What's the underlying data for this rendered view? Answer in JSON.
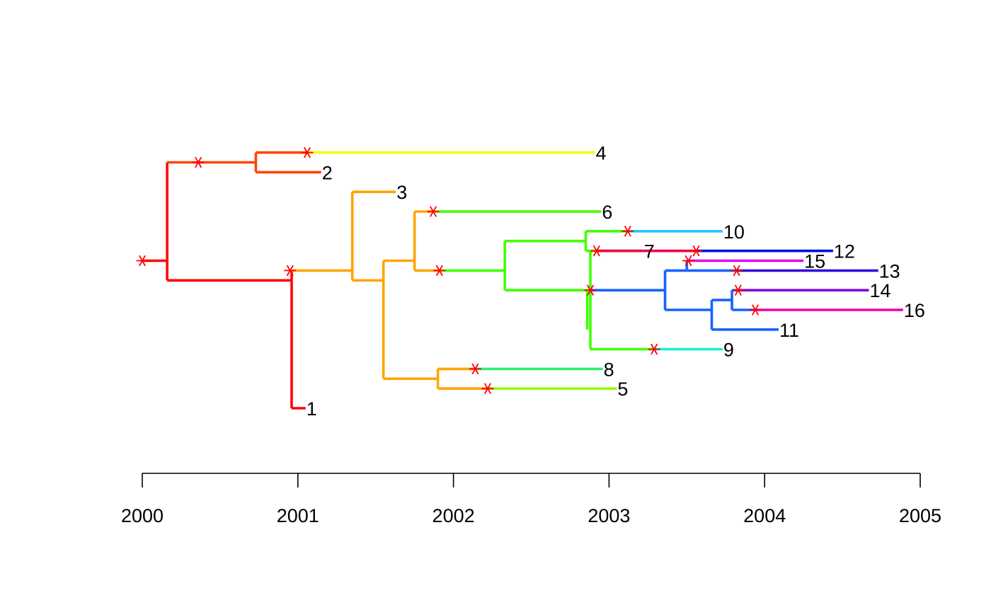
{
  "chart_data": {
    "type": "phylogenetic-tree",
    "x_axis": {
      "ticks": [
        "2000",
        "2001",
        "2002",
        "2003",
        "2004",
        "2005"
      ],
      "range": [
        2000,
        2005
      ]
    },
    "marker_color": "#FF0000",
    "segments": [
      {
        "id": "root-stem",
        "x1": 2000.0,
        "x2": 2000.16,
        "y": 7.5,
        "color": "#FF0000"
      },
      {
        "id": "root-vert",
        "x": 2000.16,
        "y1": 2.5,
        "y2": 8.5,
        "color": "#FF0000"
      },
      {
        "id": "br-upper",
        "x1": 2000.16,
        "x2": 2000.73,
        "y": 2.5,
        "color": "#FF4500"
      },
      {
        "id": "up-vert",
        "x": 2000.73,
        "y1": 2.0,
        "y2": 3.0,
        "color": "#FF4500"
      },
      {
        "id": "br-4a",
        "x1": 2000.73,
        "x2": 2001.06,
        "y": 2.0,
        "color": "#FF4500"
      },
      {
        "id": "br-4b",
        "x1": 2001.06,
        "x2": 2002.91,
        "y": 2.0,
        "color": "#F0FF00"
      },
      {
        "id": "br-2",
        "x1": 2000.73,
        "x2": 2001.15,
        "y": 3.0,
        "color": "#FF4500"
      },
      {
        "id": "br-lower",
        "x1": 2000.16,
        "x2": 2000.96,
        "y": 8.5,
        "color": "#FF0000"
      },
      {
        "id": "lo-vert",
        "x": 2000.96,
        "y1": 8.0,
        "y2": 15.0,
        "color": "#FF0000"
      },
      {
        "id": "br-1",
        "x1": 2000.96,
        "x2": 2001.05,
        "y": 15.0,
        "color": "#FF0000"
      },
      {
        "id": "br-a",
        "x1": 2000.96,
        "x2": 2001.35,
        "y": 8.0,
        "color": "#FFA500"
      },
      {
        "id": "a-vert",
        "x": 2001.35,
        "y1": 4.0,
        "y2": 8.5,
        "color": "#FFA500"
      },
      {
        "id": "br-3",
        "x1": 2001.35,
        "x2": 2001.63,
        "y": 4.0,
        "color": "#FFA500"
      },
      {
        "id": "br-b",
        "x1": 2001.35,
        "x2": 2001.55,
        "y": 8.5,
        "color": "#FFA500"
      },
      {
        "id": "b-vert",
        "x": 2001.55,
        "y1": 7.5,
        "y2": 13.5,
        "color": "#FFA500"
      },
      {
        "id": "br-c",
        "x1": 2001.55,
        "x2": 2001.75,
        "y": 7.5,
        "color": "#FFA500"
      },
      {
        "id": "c-vert",
        "x": 2001.75,
        "y1": 5.0,
        "y2": 8.0,
        "color": "#FFA500"
      },
      {
        "id": "br-6a",
        "x1": 2001.75,
        "x2": 2001.87,
        "y": 5.0,
        "color": "#FFA500"
      },
      {
        "id": "br-6b",
        "x1": 2001.87,
        "x2": 2002.95,
        "y": 5.0,
        "color": "#40FF00"
      },
      {
        "id": "br-d1",
        "x1": 2001.75,
        "x2": 2001.91,
        "y": 8.0,
        "color": "#FFA500"
      },
      {
        "id": "br-d2",
        "x1": 2001.91,
        "x2": 2002.33,
        "y": 8.0,
        "color": "#40FF00"
      },
      {
        "id": "d-vert",
        "x": 2002.33,
        "y1": 6.5,
        "y2": 9.0,
        "color": "#40FF00"
      },
      {
        "id": "br-e",
        "x1": 2002.33,
        "x2": 2002.85,
        "y": 6.5,
        "color": "#40FF00"
      },
      {
        "id": "e-vert",
        "x": 2002.85,
        "y1": 6.0,
        "y2": 7.0,
        "color": "#40FF00"
      },
      {
        "id": "br-10a",
        "x1": 2002.85,
        "x2": 2003.12,
        "y": 6.0,
        "color": "#40FF00"
      },
      {
        "id": "br-10b",
        "x1": 2003.12,
        "x2": 2003.73,
        "y": 6.0,
        "color": "#1EC8FF"
      },
      {
        "id": "br-7",
        "x1": 2002.85,
        "x2": 2003.22,
        "y": 7.0,
        "color": "#40FF00"
      },
      {
        "id": "br-f",
        "x1": 2002.33,
        "x2": 2002.86,
        "y": 9.0,
        "color": "#40FF00"
      },
      {
        "id": "f-vert",
        "x": 2002.86,
        "y1": 9.0,
        "y2": 11.0,
        "color": "#40FF00"
      },
      {
        "id": "br-f2",
        "x1": 2002.86,
        "x2": 2002.88,
        "y": 9.0,
        "color": "#40FF00"
      },
      {
        "id": "g-vert",
        "x": 2002.88,
        "y1": 7.0,
        "y2": 12.0,
        "color": "#40FF00"
      },
      {
        "id": "br-12a",
        "x1": 2002.88,
        "x2": 2002.92,
        "y": 7.0,
        "color": "#40FF00"
      },
      {
        "id": "br-12b",
        "x1": 2002.92,
        "x2": 2003.56,
        "y": 7.0,
        "color": "#F00048"
      },
      {
        "id": "br-12c",
        "x1": 2003.56,
        "x2": 2004.44,
        "y": 7.0,
        "color": "#0010E0"
      },
      {
        "id": "br-h",
        "x1": 2002.88,
        "x2": 2003.36,
        "y": 9.0,
        "color": "#1464FF"
      },
      {
        "id": "h-vert",
        "x": 2003.36,
        "y1": 8.0,
        "y2": 10.0,
        "color": "#1464FF"
      },
      {
        "id": "br-i",
        "x1": 2003.36,
        "x2": 2003.5,
        "y": 8.0,
        "color": "#1464FF"
      },
      {
        "id": "i-vert",
        "x": 2003.5,
        "y1": 7.5,
        "y2": 8.0,
        "color": "#1464FF"
      },
      {
        "id": "br-15a",
        "x1": 2003.5,
        "x2": 2003.51,
        "y": 7.5,
        "color": "#1464FF"
      },
      {
        "id": "br-15b",
        "x1": 2003.51,
        "x2": 2004.25,
        "y": 7.5,
        "color": "#E000F0"
      },
      {
        "id": "br-13a",
        "x1": 2003.5,
        "x2": 2003.82,
        "y": 8.0,
        "color": "#1464FF"
      },
      {
        "id": "br-13b",
        "x1": 2003.82,
        "x2": 2004.73,
        "y": 8.0,
        "color": "#3010E0"
      },
      {
        "id": "br-j",
        "x1": 2003.36,
        "x2": 2003.66,
        "y": 10.0,
        "color": "#1464FF"
      },
      {
        "id": "j-vert",
        "x": 2003.66,
        "y1": 9.5,
        "y2": 11.0,
        "color": "#1464FF"
      },
      {
        "id": "br-k",
        "x1": 2003.66,
        "x2": 2003.79,
        "y": 9.5,
        "color": "#1464FF"
      },
      {
        "id": "k-vert",
        "x": 2003.79,
        "y1": 9.0,
        "y2": 10.0,
        "color": "#1464FF"
      },
      {
        "id": "br-14a",
        "x1": 2003.79,
        "x2": 2003.83,
        "y": 9.0,
        "color": "#1464FF"
      },
      {
        "id": "br-14b",
        "x1": 2003.83,
        "x2": 2004.67,
        "y": 9.0,
        "color": "#8000E0"
      },
      {
        "id": "br-16a",
        "x1": 2003.79,
        "x2": 2003.94,
        "y": 10.0,
        "color": "#1464FF"
      },
      {
        "id": "br-16b",
        "x1": 2003.94,
        "x2": 2004.89,
        "y": 10.0,
        "color": "#F000B0"
      },
      {
        "id": "br-11",
        "x1": 2003.66,
        "x2": 2004.09,
        "y": 11.0,
        "color": "#1464FF"
      },
      {
        "id": "br-9a",
        "x1": 2002.88,
        "x2": 2003.29,
        "y": 12.0,
        "color": "#40FF00"
      },
      {
        "id": "br-9b",
        "x1": 2003.29,
        "x2": 2003.73,
        "y": 12.0,
        "color": "#20F0D0"
      },
      {
        "id": "m-vert",
        "x": 2001.9,
        "y1": 13.0,
        "y2": 14.0,
        "color": "#FFA500"
      },
      {
        "id": "br-m",
        "x1": 2001.55,
        "x2": 2001.9,
        "y": 13.5,
        "color": "#FFA500"
      },
      {
        "id": "br-8a",
        "x1": 2001.9,
        "x2": 2002.14,
        "y": 13.0,
        "color": "#FFA500"
      },
      {
        "id": "br-8b",
        "x1": 2002.14,
        "x2": 2002.96,
        "y": 13.0,
        "color": "#30F070"
      },
      {
        "id": "br-5a",
        "x1": 2001.9,
        "x2": 2002.22,
        "y": 14.0,
        "color": "#FFA500"
      },
      {
        "id": "br-5b",
        "x1": 2002.22,
        "x2": 2003.05,
        "y": 14.0,
        "color": "#90FF00"
      }
    ],
    "transmission_markers": [
      {
        "x": 2000.0,
        "y": 7.5
      },
      {
        "x": 2000.36,
        "y": 2.5
      },
      {
        "x": 2001.06,
        "y": 2.0
      },
      {
        "x": 2000.95,
        "y": 8.0
      },
      {
        "x": 2001.87,
        "y": 5.0
      },
      {
        "x": 2001.91,
        "y": 8.0
      },
      {
        "x": 2003.12,
        "y": 6.0
      },
      {
        "x": 2002.92,
        "y": 7.0
      },
      {
        "x": 2003.56,
        "y": 7.0
      },
      {
        "x": 2003.51,
        "y": 7.5
      },
      {
        "x": 2003.82,
        "y": 8.0
      },
      {
        "x": 2002.88,
        "y": 9.0
      },
      {
        "x": 2003.83,
        "y": 9.0
      },
      {
        "x": 2003.94,
        "y": 10.0
      },
      {
        "x": 2003.29,
        "y": 12.0
      },
      {
        "x": 2002.14,
        "y": 13.0
      },
      {
        "x": 2002.22,
        "y": 14.0
      }
    ],
    "tip_labels": [
      {
        "label": "4",
        "x": 2002.91,
        "y": 2.0
      },
      {
        "label": "2",
        "x": 2001.15,
        "y": 3.0
      },
      {
        "label": "3",
        "x": 2001.63,
        "y": 4.0
      },
      {
        "label": "6",
        "x": 2002.95,
        "y": 5.0
      },
      {
        "label": "10",
        "x": 2003.73,
        "y": 6.0
      },
      {
        "label": "7",
        "x": 2003.22,
        "y": 7.0
      },
      {
        "label": "12",
        "x": 2004.44,
        "y": 7.0
      },
      {
        "label": "15",
        "x": 2004.25,
        "y": 7.5
      },
      {
        "label": "13",
        "x": 2004.73,
        "y": 8.0
      },
      {
        "label": "14",
        "x": 2004.67,
        "y": 9.0
      },
      {
        "label": "16",
        "x": 2004.89,
        "y": 10.0
      },
      {
        "label": "11",
        "x": 2004.09,
        "y": 11.0
      },
      {
        "label": "9",
        "x": 2003.73,
        "y": 12.0
      },
      {
        "label": "8",
        "x": 2002.96,
        "y": 13.0
      },
      {
        "label": "5",
        "x": 2003.05,
        "y": 14.0
      },
      {
        "label": "1",
        "x": 2001.05,
        "y": 15.0
      }
    ]
  }
}
